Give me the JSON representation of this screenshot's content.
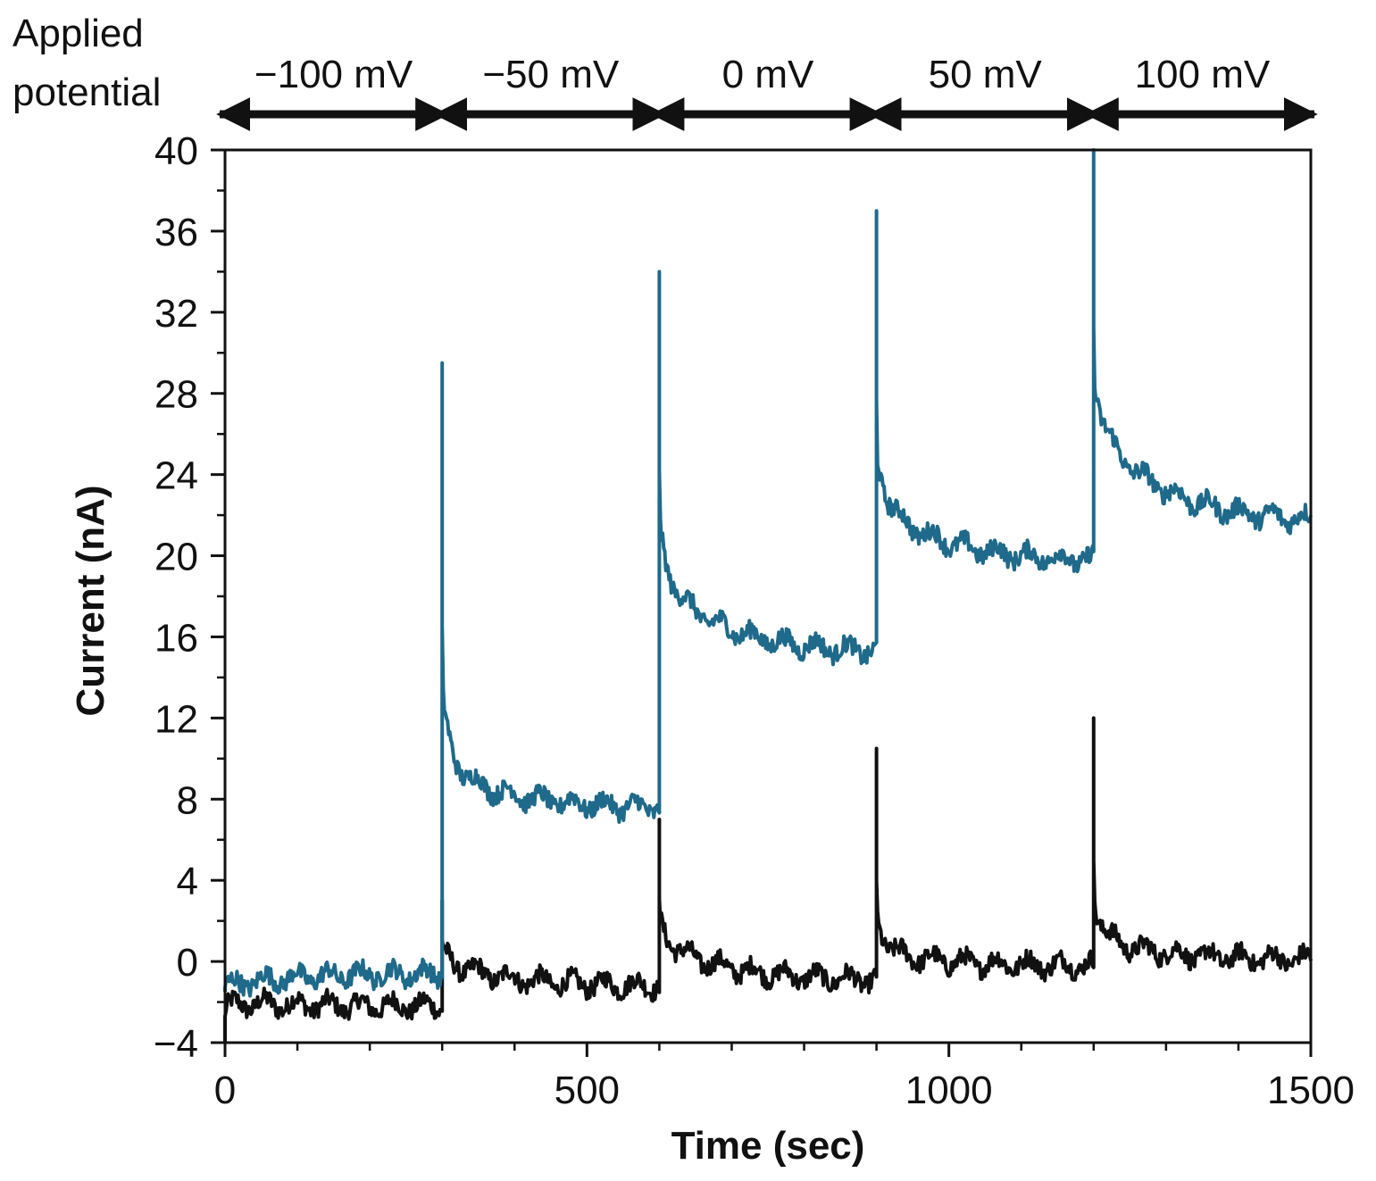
{
  "chart_data": {
    "type": "line",
    "title": "",
    "xlabel": "Time (sec)",
    "ylabel": "Current (nA)",
    "xlim": [
      0,
      1500
    ],
    "ylim": [
      -4,
      40
    ],
    "xticks": [
      0,
      500,
      1000,
      1500
    ],
    "yticks": [
      -4,
      0,
      4,
      8,
      12,
      16,
      20,
      24,
      28,
      32,
      36,
      40
    ],
    "x_minor_step": 100,
    "y_minor_step": 2,
    "grid": false,
    "header": {
      "title_lines": [
        "Applied",
        "potential"
      ],
      "bands": [
        {
          "label": "−100 mV",
          "start": 0,
          "end": 300
        },
        {
          "label": "−50 mV",
          "start": 300,
          "end": 600
        },
        {
          "label": "0 mV",
          "start": 600,
          "end": 900
        },
        {
          "label": "50 mV",
          "start": 900,
          "end": 1200
        },
        {
          "label": "100 mV",
          "start": 1200,
          "end": 1500
        }
      ]
    },
    "series": [
      {
        "name": "blue trace",
        "color": "#1f6a8a",
        "segments": [
          {
            "start": 0,
            "end": 300,
            "spike": -1.5,
            "steady_start": -1.2,
            "steady_end": -0.6
          },
          {
            "start": 300,
            "end": 600,
            "spike": 29.5,
            "steady_start": 9.6,
            "steady_end": 7.6
          },
          {
            "start": 600,
            "end": 900,
            "spike": 34.0,
            "steady_start": 18.8,
            "steady_end": 15.3
          },
          {
            "start": 900,
            "end": 1200,
            "spike": 37.0,
            "steady_start": 22.6,
            "steady_end": 19.8
          },
          {
            "start": 1200,
            "end": 1500,
            "spike": 40.0,
            "steady_start": 26.5,
            "steady_end": 21.8
          }
        ]
      },
      {
        "name": "black trace",
        "color": "#111111",
        "segments": [
          {
            "start": 0,
            "end": 300,
            "spike": -4.0,
            "steady_start": -2.0,
            "steady_end": -2.2
          },
          {
            "start": 300,
            "end": 600,
            "spike": 3.0,
            "steady_start": 0.0,
            "steady_end": -1.2
          },
          {
            "start": 600,
            "end": 900,
            "spike": 7.0,
            "steady_start": 1.0,
            "steady_end": -0.9
          },
          {
            "start": 900,
            "end": 1200,
            "spike": 10.5,
            "steady_start": 0.5,
            "steady_end": -0.2
          },
          {
            "start": 1200,
            "end": 1500,
            "spike": 12.0,
            "steady_start": 1.2,
            "steady_end": 0.1
          }
        ]
      }
    ]
  }
}
